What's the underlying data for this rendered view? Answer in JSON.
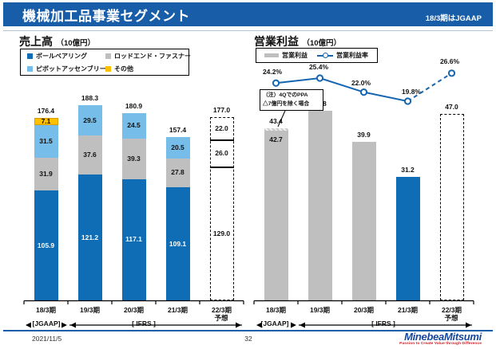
{
  "header": {
    "title": "機械加工品事業セグメント",
    "right_note": "18/3期はJGAAP"
  },
  "footer": {
    "date": "2021/11/5",
    "page_number": "32",
    "logo_text": "MinebeaMitsumi",
    "logo_tagline": "Passion to Create Value through Difference"
  },
  "colors": {
    "header_blue": "#185da8",
    "bar_blue": "#0e6db5",
    "bar_light_blue": "#76bde9",
    "bar_gray": "#bfbfbf",
    "bar_yellow": "#ffc000",
    "yellow_border": "#d99b00",
    "line_blue": "#1565b0"
  },
  "chart_data": [
    {
      "type": "bar",
      "subtype": "stacked",
      "title": "売上高",
      "unit": "（10億円）",
      "categories": [
        "18/3期",
        "19/3期",
        "20/3期",
        "21/3期",
        "22/3期"
      ],
      "forecast_label": "予想",
      "series": [
        {
          "name": "ボールベアリング",
          "color": "#0e6db5",
          "values": [
            105.9,
            121.2,
            117.1,
            109.1,
            null
          ]
        },
        {
          "name": "ロッドエンド・ファスナー",
          "color": "#bfbfbf",
          "values": [
            31.9,
            37.6,
            39.3,
            27.8,
            null
          ]
        },
        {
          "name": "ピボットアッセンブリー",
          "color": "#76bde9",
          "values": [
            31.5,
            29.5,
            24.5,
            20.5,
            null
          ]
        },
        {
          "name": "その他",
          "color": "#ffc000",
          "values": [
            7.1,
            null,
            null,
            null,
            null
          ]
        }
      ],
      "totals": [
        176.4,
        188.3,
        180.9,
        157.4,
        177.0
      ],
      "forecast": {
        "index": 4,
        "segments_bottom_up": [
          129.0,
          26.0,
          22.0
        ],
        "total": 177.0
      },
      "period_labels": {
        "jgaap": "[JGAAP]",
        "ifrs": "[ IFRS ]"
      },
      "ylim": [
        0,
        200
      ],
      "grid": false
    },
    {
      "type": "bar",
      "subtype": "bar+line",
      "title": "営業利益",
      "unit": "（10億円）",
      "legend": [
        "営業利益",
        "営業利益率"
      ],
      "categories": [
        "18/3期",
        "19/3期",
        "20/3期",
        "21/3期",
        "22/3期"
      ],
      "forecast_label": "予想",
      "bars": [
        43.4,
        47.8,
        39.9,
        31.2,
        47.0
      ],
      "bar_styles": [
        "gray_hatch_top",
        "gray",
        "gray",
        "blue",
        "forecast_dashed"
      ],
      "bar_inner_note": {
        "index": 0,
        "value": 42.7
      },
      "line_series_name": "営業利益率",
      "line_percent": [
        24.2,
        25.4,
        22.0,
        19.8,
        26.6
      ],
      "line_dashed_from_index": 3,
      "note_lines": [
        "（注）4QでのPPA",
        "△7億円を除く場合"
      ],
      "period_labels": {
        "jgaap": "[JGAAP]",
        "ifrs": "[ IFRS ]"
      },
      "ylim": [
        0,
        55
      ],
      "grid": false
    }
  ]
}
